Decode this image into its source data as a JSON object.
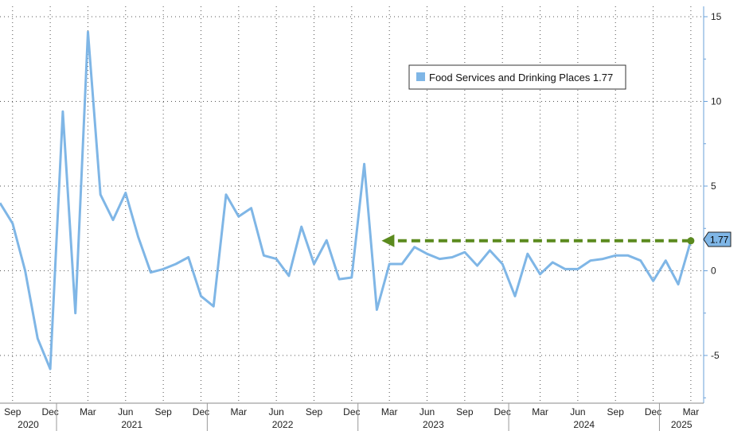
{
  "chart_data": {
    "type": "line",
    "title": "",
    "xlabel": "",
    "ylabel": "",
    "ylim": [
      -7.5,
      15.5
    ],
    "yticks": [
      -5,
      0,
      5,
      10,
      15
    ],
    "grid": true,
    "legend_position": "top-right",
    "x_month_ticks": [
      "Sep",
      "Dec",
      "Mar",
      "Jun",
      "Sep",
      "Dec",
      "Mar",
      "Jun",
      "Sep",
      "Dec",
      "Mar",
      "Jun",
      "Sep",
      "Dec",
      "Mar",
      "Jun",
      "Sep",
      "Dec",
      "Mar"
    ],
    "x_year_labels": [
      "2020",
      "2021",
      "2022",
      "2023",
      "2024",
      "2025"
    ],
    "x": [
      "2020-08",
      "2020-09",
      "2020-10",
      "2020-11",
      "2020-12",
      "2021-01",
      "2021-02",
      "2021-03",
      "2021-04",
      "2021-05",
      "2021-06",
      "2021-07",
      "2021-08",
      "2021-09",
      "2021-10",
      "2021-11",
      "2021-12",
      "2022-01",
      "2022-02",
      "2022-03",
      "2022-04",
      "2022-05",
      "2022-06",
      "2022-07",
      "2022-08",
      "2022-09",
      "2022-10",
      "2022-11",
      "2022-12",
      "2023-01",
      "2023-02",
      "2023-03",
      "2023-04",
      "2023-05",
      "2023-06",
      "2023-07",
      "2023-08",
      "2023-09",
      "2023-10",
      "2023-11",
      "2023-12",
      "2024-01",
      "2024-02",
      "2024-03",
      "2024-04",
      "2024-05",
      "2024-06",
      "2024-07",
      "2024-08",
      "2024-09",
      "2024-10",
      "2024-11",
      "2024-12",
      "2025-01",
      "2025-02",
      "2025-03"
    ],
    "series": [
      {
        "name": "Food Services and Drinking Places",
        "color": "#7fb6e6",
        "values": [
          4.0,
          2.8,
          0.0,
          -4.0,
          -5.8,
          9.4,
          -2.5,
          14.1,
          4.5,
          3.0,
          4.6,
          2.0,
          -0.1,
          0.1,
          0.4,
          0.8,
          -1.5,
          -2.1,
          4.5,
          3.2,
          3.7,
          0.9,
          0.7,
          -0.3,
          2.6,
          0.4,
          1.8,
          -0.5,
          -0.4,
          6.3,
          -2.3,
          0.4,
          0.4,
          1.4,
          1.0,
          0.7,
          0.8,
          1.1,
          0.3,
          1.2,
          0.4,
          -1.5,
          1.0,
          -0.2,
          0.5,
          0.1,
          0.1,
          0.6,
          0.7,
          0.9,
          0.9,
          0.6,
          -0.6,
          0.6,
          -0.8,
          1.77
        ]
      }
    ],
    "legend": {
      "label": "Food Services and Drinking Places 1.77"
    },
    "last_value_label": "1.77",
    "annotation": {
      "type": "dashed-arrow",
      "color": "#5b8a1e",
      "from": "2025-03",
      "to": "2023-02",
      "value": 1.77
    }
  }
}
